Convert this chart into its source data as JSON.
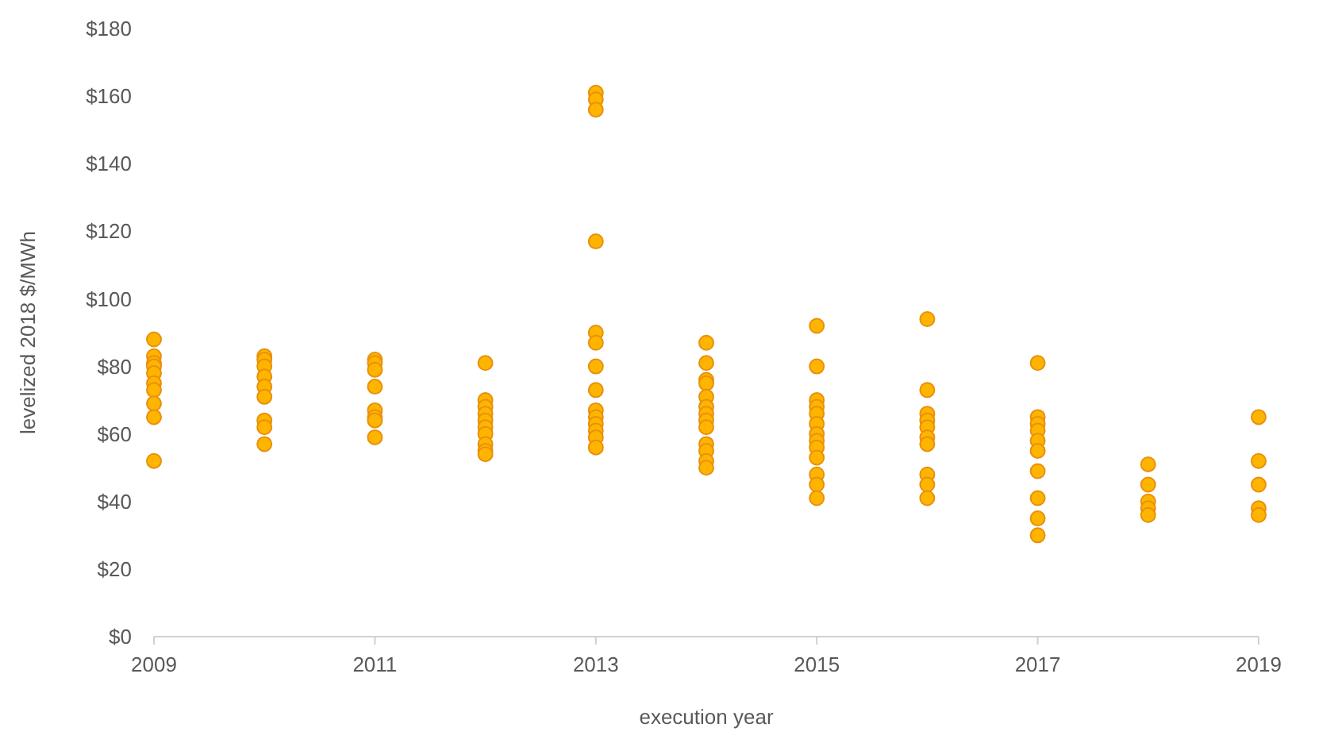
{
  "chart_data": {
    "type": "scatter",
    "xlabel": "execution year",
    "ylabel": "levelized 2018 $/MWh",
    "marker": "circle",
    "xlim": [
      2009,
      2019
    ],
    "xticks": [
      2009,
      2011,
      2013,
      2015,
      2017,
      2019
    ],
    "ylim": [
      0,
      180
    ],
    "yticks": [
      {
        "value": 0,
        "label": "$0"
      },
      {
        "value": 20,
        "label": "$20"
      },
      {
        "value": 40,
        "label": "$40"
      },
      {
        "value": 60,
        "label": "$60"
      },
      {
        "value": 80,
        "label": "$80"
      },
      {
        "value": 100,
        "label": "$100"
      },
      {
        "value": 120,
        "label": "$120"
      },
      {
        "value": 140,
        "label": "$140"
      },
      {
        "value": 160,
        "label": "$160"
      },
      {
        "value": 180,
        "label": "$180"
      }
    ],
    "series": [
      {
        "color": "#ffb400",
        "x": [
          2009,
          2009,
          2009,
          2009,
          2009,
          2009,
          2009,
          2009,
          2009,
          2009,
          2010,
          2010,
          2010,
          2010,
          2010,
          2010,
          2010,
          2010,
          2010,
          2011,
          2011,
          2011,
          2011,
          2011,
          2011,
          2011,
          2011,
          2012,
          2012,
          2012,
          2012,
          2012,
          2012,
          2012,
          2012,
          2012,
          2012,
          2013,
          2013,
          2013,
          2013,
          2013,
          2013,
          2013,
          2013,
          2013,
          2013,
          2013,
          2013,
          2013,
          2013,
          2014,
          2014,
          2014,
          2014,
          2014,
          2014,
          2014,
          2014,
          2014,
          2014,
          2014,
          2014,
          2014,
          2015,
          2015,
          2015,
          2015,
          2015,
          2015,
          2015,
          2015,
          2015,
          2015,
          2015,
          2015,
          2015,
          2016,
          2016,
          2016,
          2016,
          2016,
          2016,
          2016,
          2016,
          2016,
          2016,
          2017,
          2017,
          2017,
          2017,
          2017,
          2017,
          2017,
          2017,
          2017,
          2017,
          2018,
          2018,
          2018,
          2018,
          2018,
          2019,
          2019,
          2019,
          2019,
          2019
        ],
        "values": [
          88,
          83,
          81,
          80,
          78,
          75,
          73,
          69,
          65,
          52,
          83,
          82,
          80,
          77,
          74,
          71,
          64,
          62,
          57,
          82,
          81,
          79,
          74,
          67,
          65,
          64,
          59,
          81,
          70,
          68,
          66,
          64,
          62,
          60,
          57,
          55,
          54,
          161,
          159,
          156,
          117,
          90,
          87,
          80,
          73,
          67,
          65,
          63,
          61,
          59,
          56,
          87,
          81,
          76,
          75,
          71,
          68,
          66,
          64,
          62,
          57,
          55,
          52,
          50,
          92,
          80,
          70,
          68,
          66,
          63,
          60,
          58,
          56,
          53,
          48,
          45,
          41,
          94,
          73,
          66,
          64,
          62,
          59,
          57,
          48,
          45,
          41,
          81,
          65,
          63,
          61,
          58,
          55,
          49,
          41,
          35,
          30,
          51,
          45,
          40,
          38,
          36,
          65,
          52,
          45,
          38,
          36
        ]
      }
    ]
  }
}
